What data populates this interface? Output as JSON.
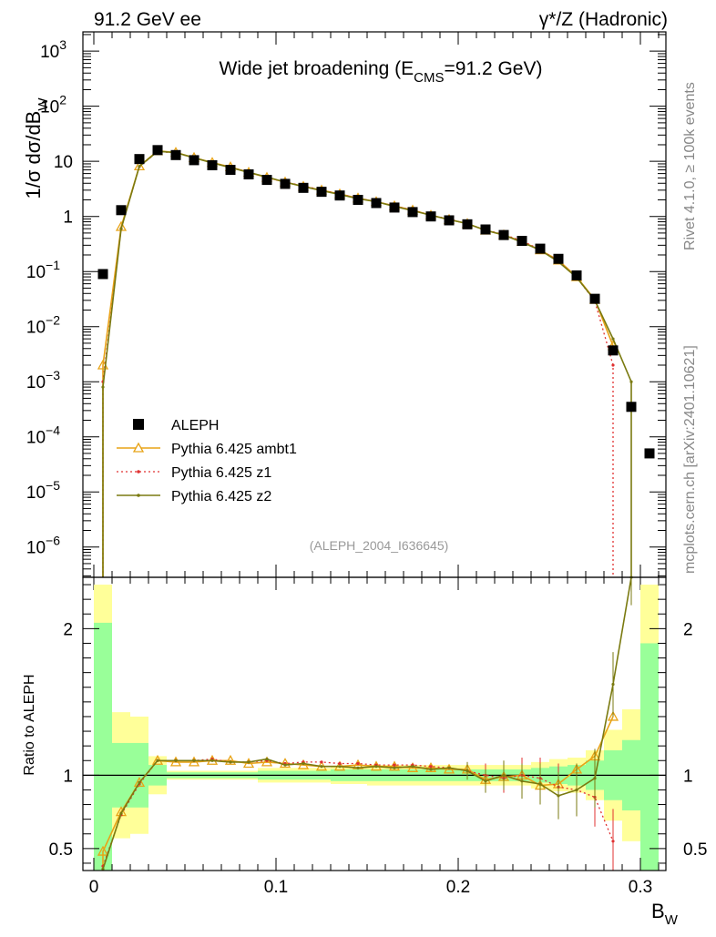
{
  "header": {
    "left": "91.2 GeV ee",
    "right_prefix": "γ*/Z",
    "right_suffix": " (Hadronic)"
  },
  "side_labels": {
    "rivet": "Rivet 4.1.0, ≥ 100k events",
    "mcplots": "mcplots.cern.ch [arXiv:2401.10621]"
  },
  "chart_data": {
    "type": "line",
    "title_main": "Wide jet broadening (E",
    "title_sub": "CMS",
    "title_tail": "=91.2 GeV)",
    "analysis_id": "(ALEPH_2004_I636645)",
    "ylabel_parts": [
      "1/σ  dσ/dB",
      "W"
    ],
    "xlabel_parts": [
      "B",
      "W"
    ],
    "ratio_ylabel": "Ratio to ALEPH",
    "x_ticks": [
      "0",
      "0.1",
      "0.2",
      "0.3"
    ],
    "y_ticks": [
      {
        "exp": 3,
        "label": "10",
        "sup": "3"
      },
      {
        "exp": 2,
        "label": "10",
        "sup": "2"
      },
      {
        "exp": 1,
        "label": "10",
        "sup": ""
      },
      {
        "exp": 0,
        "label": "1",
        "sup": ""
      },
      {
        "exp": -1,
        "label": "10",
        "sup": "−1"
      },
      {
        "exp": -2,
        "label": "10",
        "sup": "−2"
      },
      {
        "exp": -3,
        "label": "10",
        "sup": "−3"
      },
      {
        "exp": -4,
        "label": "10",
        "sup": "−4"
      },
      {
        "exp": -5,
        "label": "10",
        "sup": "−5"
      },
      {
        "exp": -6,
        "label": "10",
        "sup": "−6"
      }
    ],
    "ratio_ticks": [
      "0.5",
      "1",
      "2"
    ],
    "xlim": [
      -0.006,
      0.314
    ],
    "ylim_log": [
      -6.55,
      3.35
    ],
    "ratio_ylim": [
      0.35,
      2.35
    ],
    "legend": [
      "ALEPH",
      "Pythia 6.425 ambt1",
      "Pythia 6.425 z1",
      "Pythia 6.425 z2"
    ],
    "colors": {
      "data": "#000000",
      "ambt1": "#e8a317",
      "z1": "#e03030",
      "z2": "#7a7a10",
      "band_green": "#99ff99",
      "band_yellow": "#ffff99"
    },
    "data": {
      "name": "ALEPH",
      "x": [
        0.005,
        0.015,
        0.025,
        0.035,
        0.045,
        0.055,
        0.065,
        0.075,
        0.085,
        0.095,
        0.105,
        0.115,
        0.125,
        0.135,
        0.145,
        0.155,
        0.165,
        0.175,
        0.185,
        0.195,
        0.205,
        0.215,
        0.225,
        0.235,
        0.245,
        0.255,
        0.265,
        0.275,
        0.285,
        0.295,
        0.305
      ],
      "y": [
        0.09,
        1.3,
        11,
        16,
        13,
        10.5,
        8.5,
        7,
        5.8,
        4.6,
        3.9,
        3.3,
        2.8,
        2.4,
        2.0,
        1.75,
        1.45,
        1.2,
        1.0,
        0.85,
        0.72,
        0.58,
        0.46,
        0.36,
        0.26,
        0.17,
        0.085,
        0.032,
        0.0037,
        0.00035,
        5e-05
      ]
    },
    "series": [
      {
        "name": "Pythia 6.425 ambt1",
        "x": [
          0.005,
          0.015,
          0.025,
          0.035,
          0.045,
          0.055,
          0.065,
          0.075,
          0.085,
          0.095,
          0.105,
          0.115,
          0.125,
          0.135,
          0.145,
          0.155,
          0.165,
          0.175,
          0.185,
          0.195,
          0.205,
          0.215,
          0.225,
          0.235,
          0.245,
          0.255,
          0.265,
          0.275,
          0.285
        ],
        "y": [
          0.002,
          0.65,
          8.2,
          15.5,
          14.5,
          11.7,
          9.5,
          7.9,
          6.3,
          5.1,
          4.2,
          3.5,
          3.0,
          2.55,
          2.15,
          1.85,
          1.55,
          1.3,
          1.05,
          0.88,
          0.74,
          0.56,
          0.46,
          0.35,
          0.245,
          0.16,
          0.08,
          0.031,
          0.0045
        ],
        "ratio": [
          0.48,
          0.75,
          0.95,
          1.1,
          1.09,
          1.09,
          1.1,
          1.1,
          1.08,
          1.09,
          1.08,
          1.07,
          1.06,
          1.06,
          1.07,
          1.06,
          1.06,
          1.05,
          1.05,
          1.04,
          1.04,
          0.97,
          0.99,
          1.0,
          0.93,
          0.94,
          1.04,
          1.13,
          1.4
        ]
      },
      {
        "name": "Pythia 6.425 z1",
        "x": [
          0.005,
          0.015,
          0.025,
          0.035,
          0.045,
          0.055,
          0.065,
          0.075,
          0.085,
          0.095,
          0.105,
          0.115,
          0.125,
          0.135,
          0.145,
          0.155,
          0.165,
          0.175,
          0.185,
          0.195,
          0.205,
          0.215,
          0.225,
          0.235,
          0.245,
          0.255,
          0.265,
          0.275,
          0.285
        ],
        "y": [
          0.001,
          0.6,
          8.0,
          15.0,
          14.3,
          11.6,
          9.4,
          7.8,
          6.4,
          5.1,
          4.2,
          3.6,
          3.0,
          2.55,
          2.15,
          1.85,
          1.55,
          1.3,
          1.05,
          0.9,
          0.73,
          0.57,
          0.47,
          0.36,
          0.25,
          0.155,
          0.078,
          0.029,
          0.002
        ],
        "ratio": [
          0.38,
          0.73,
          0.94,
          1.1,
          1.1,
          1.1,
          1.11,
          1.09,
          1.09,
          1.1,
          1.08,
          1.09,
          1.09,
          1.08,
          1.08,
          1.07,
          1.07,
          1.07,
          1.06,
          1.05,
          1.03,
          1.0,
          0.98,
          1.0,
          0.98,
          0.92,
          0.9,
          0.85,
          0.55
        ]
      },
      {
        "name": "Pythia 6.425 z2",
        "x": [
          0.005,
          0.015,
          0.025,
          0.035,
          0.045,
          0.055,
          0.065,
          0.075,
          0.085,
          0.095,
          0.105,
          0.115,
          0.125,
          0.135,
          0.145,
          0.155,
          0.165,
          0.175,
          0.185,
          0.195,
          0.205,
          0.215,
          0.225,
          0.235,
          0.245,
          0.255,
          0.265,
          0.275,
          0.285,
          0.295
        ],
        "y": [
          0.0008,
          0.6,
          8.1,
          15.2,
          14.4,
          11.6,
          9.4,
          7.7,
          6.3,
          5.2,
          4.2,
          3.5,
          2.95,
          2.5,
          2.1,
          1.85,
          1.52,
          1.27,
          1.05,
          0.88,
          0.74,
          0.56,
          0.46,
          0.34,
          0.245,
          0.15,
          0.078,
          0.03,
          0.006,
          0.001
        ],
        "ratio": [
          0.36,
          0.74,
          0.95,
          1.1,
          1.1,
          1.1,
          1.1,
          1.09,
          1.09,
          1.11,
          1.07,
          1.08,
          1.06,
          1.06,
          1.05,
          1.06,
          1.05,
          1.06,
          1.04,
          1.05,
          1.03,
          0.96,
          1.0,
          0.96,
          0.94,
          0.86,
          0.9,
          0.98,
          1.62,
          2.4
        ]
      }
    ],
    "bands": {
      "x_edges": [
        0.0,
        0.01,
        0.02,
        0.03,
        0.04,
        0.05,
        0.06,
        0.07,
        0.08,
        0.09,
        0.1,
        0.11,
        0.12,
        0.13,
        0.14,
        0.15,
        0.16,
        0.17,
        0.18,
        0.19,
        0.2,
        0.21,
        0.22,
        0.23,
        0.24,
        0.25,
        0.26,
        0.27,
        0.28,
        0.29,
        0.3,
        0.31
      ],
      "green": [
        1.04,
        0.22,
        0.22,
        0.07,
        0.02,
        0.02,
        0.02,
        0.02,
        0.02,
        0.03,
        0.03,
        0.03,
        0.03,
        0.04,
        0.04,
        0.04,
        0.04,
        0.04,
        0.04,
        0.04,
        0.04,
        0.04,
        0.04,
        0.04,
        0.05,
        0.06,
        0.07,
        0.1,
        0.17,
        0.24,
        0.9
      ],
      "yellow": [
        1.3,
        0.43,
        0.4,
        0.13,
        0.03,
        0.03,
        0.03,
        0.03,
        0.03,
        0.05,
        0.05,
        0.05,
        0.05,
        0.06,
        0.06,
        0.07,
        0.07,
        0.07,
        0.07,
        0.07,
        0.07,
        0.07,
        0.07,
        0.07,
        0.09,
        0.11,
        0.12,
        0.17,
        0.31,
        0.45,
        1.3
      ]
    }
  }
}
